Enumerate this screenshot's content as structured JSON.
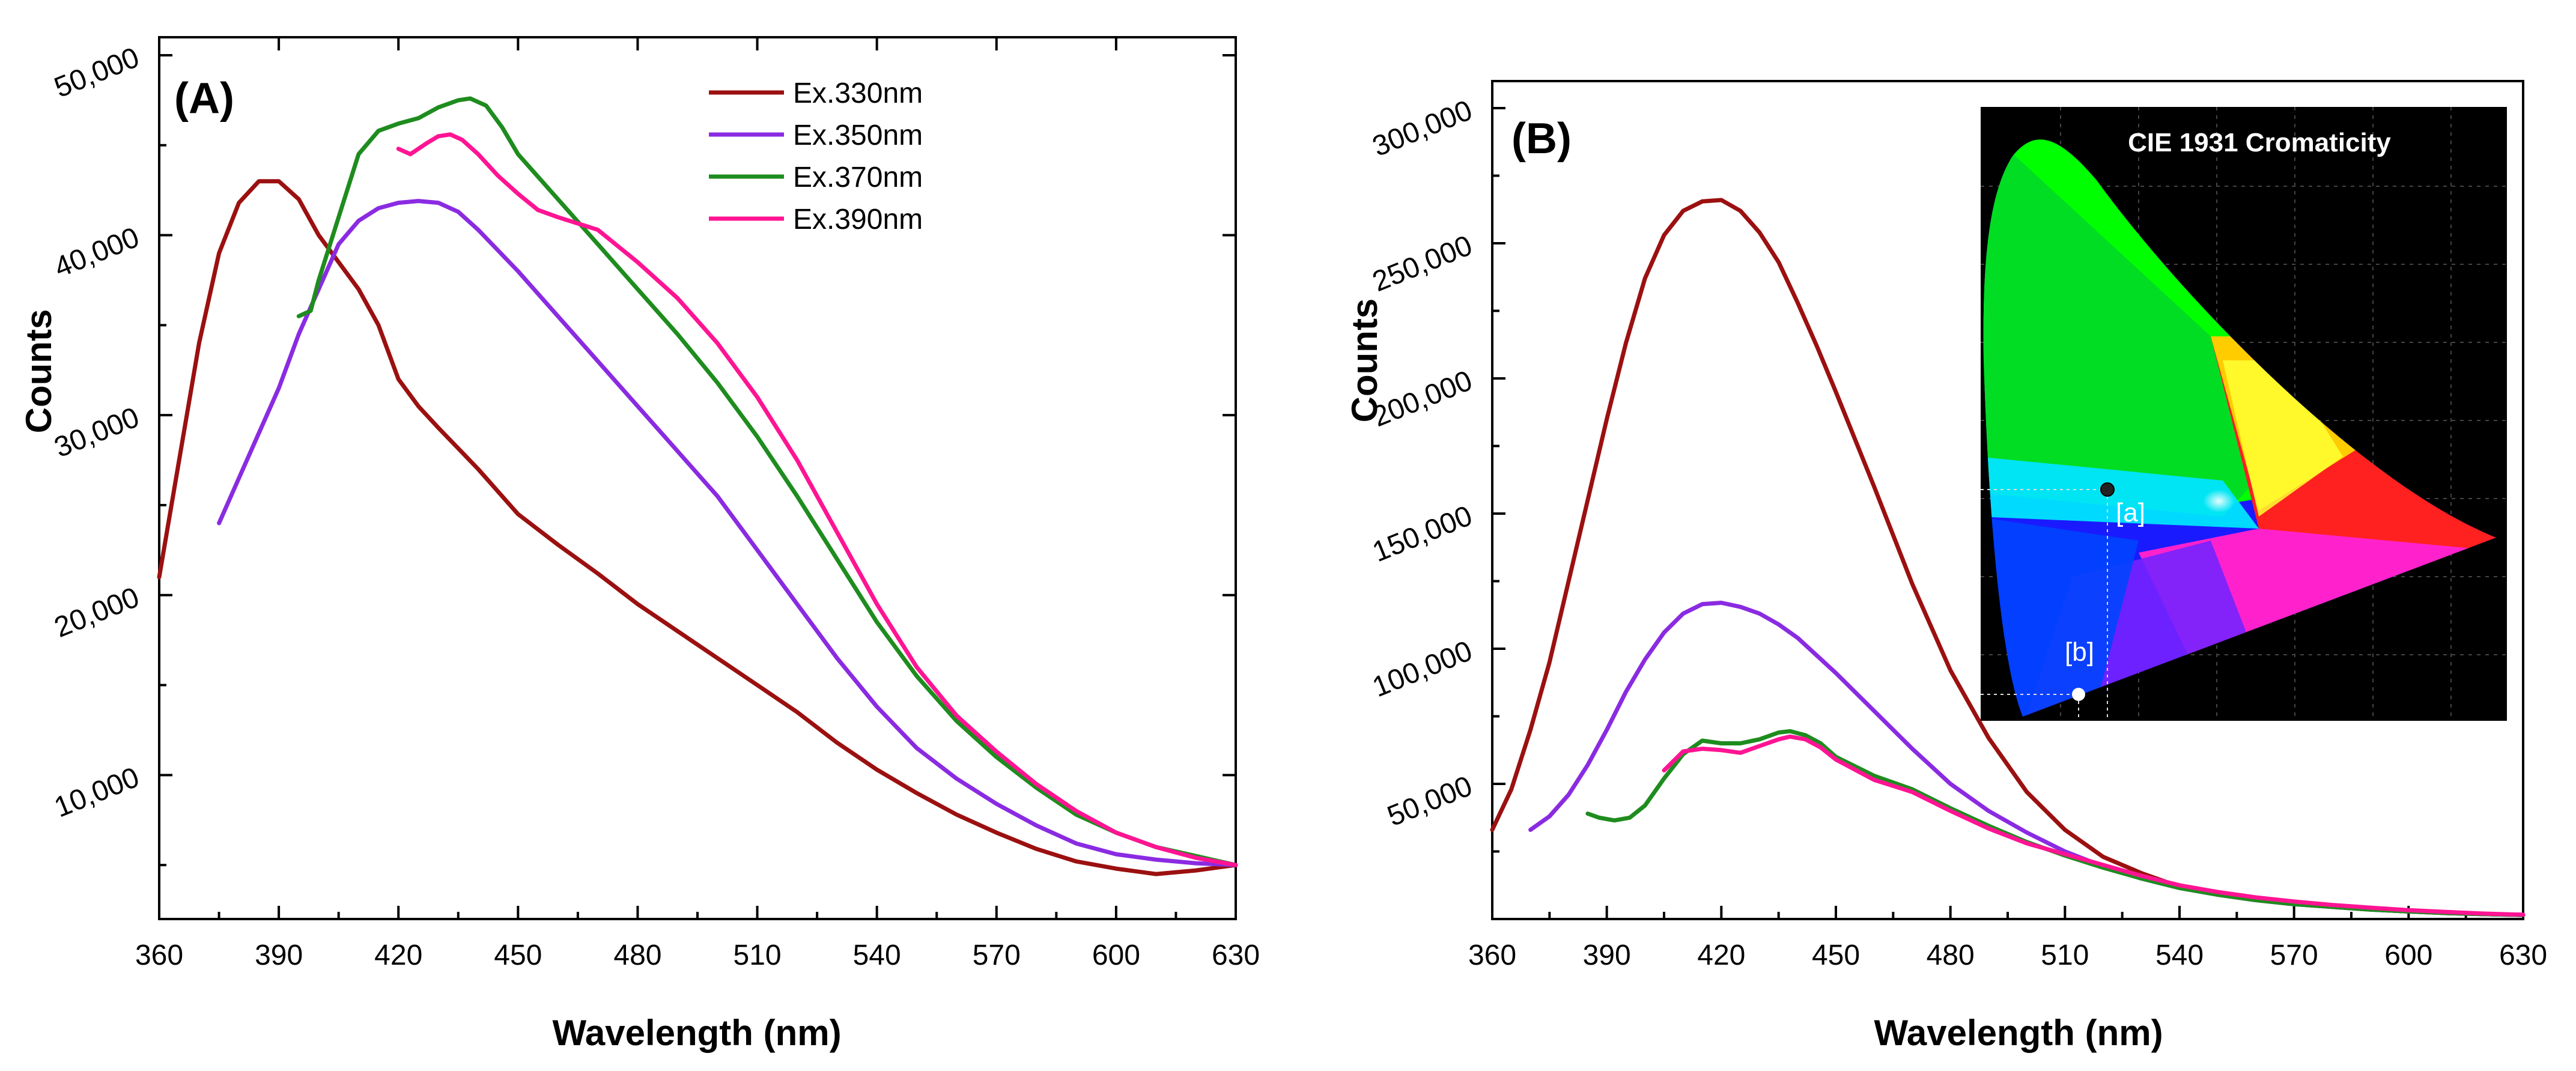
{
  "chart_data": [
    {
      "type": "line",
      "panel_label": "(A)",
      "xlabel": "Wavelength (nm)",
      "ylabel": "Counts",
      "xlim": [
        360,
        630
      ],
      "ylim": [
        2000,
        51000
      ],
      "xticks": [
        360,
        390,
        420,
        450,
        480,
        510,
        540,
        570,
        600,
        630
      ],
      "xtick_labels": [
        "360",
        "390",
        "420",
        "450",
        "480",
        "510",
        "540",
        "570",
        "600",
        "630"
      ],
      "yticks": [
        10000,
        20000,
        30000,
        40000,
        50000
      ],
      "ytick_labels": [
        "10,000",
        "20,000",
        "30,000",
        "40,000",
        "50,000"
      ],
      "legend_position": "top-center",
      "series": [
        {
          "name": "Ex.330nm",
          "color": "#9b1010",
          "x": [
            360,
            365,
            370,
            375,
            380,
            385,
            390,
            395,
            400,
            405,
            410,
            415,
            420,
            425,
            430,
            440,
            450,
            460,
            470,
            480,
            490,
            500,
            510,
            520,
            530,
            540,
            550,
            560,
            570,
            580,
            590,
            600,
            610,
            620,
            630
          ],
          "y": [
            21000,
            27500,
            34000,
            39000,
            41800,
            43000,
            43000,
            42000,
            40000,
            38500,
            37000,
            35000,
            32000,
            30500,
            29300,
            27000,
            24500,
            22800,
            21200,
            19500,
            18000,
            16500,
            15000,
            13500,
            11800,
            10300,
            9000,
            7800,
            6800,
            5900,
            5200,
            4800,
            4500,
            4700,
            5000
          ]
        },
        {
          "name": "Ex.350nm",
          "color": "#8a2be2",
          "x": [
            375,
            380,
            385,
            390,
            395,
            400,
            405,
            410,
            415,
            420,
            425,
            430,
            435,
            440,
            450,
            460,
            470,
            480,
            490,
            500,
            510,
            520,
            530,
            540,
            550,
            560,
            570,
            580,
            590,
            600,
            610,
            620,
            630
          ],
          "y": [
            24000,
            26500,
            29000,
            31500,
            34500,
            37000,
            39500,
            40800,
            41500,
            41800,
            41900,
            41800,
            41300,
            40300,
            38000,
            35500,
            33000,
            30500,
            28000,
            25500,
            22500,
            19500,
            16500,
            13800,
            11500,
            9800,
            8400,
            7200,
            6200,
            5600,
            5300,
            5100,
            5000
          ]
        },
        {
          "name": "Ex.370nm",
          "color": "#1e8c1e",
          "x": [
            395,
            398,
            400,
            405,
            410,
            415,
            420,
            425,
            430,
            435,
            438,
            442,
            446,
            450,
            460,
            470,
            480,
            490,
            500,
            510,
            520,
            530,
            540,
            550,
            560,
            570,
            580,
            590,
            600,
            610,
            620,
            630
          ],
          "y": [
            35500,
            35800,
            37500,
            41000,
            44500,
            45800,
            46200,
            46500,
            47100,
            47500,
            47600,
            47200,
            46000,
            44500,
            42000,
            39500,
            37000,
            34500,
            31800,
            28800,
            25500,
            22000,
            18500,
            15500,
            13000,
            11000,
            9300,
            7800,
            6800,
            6000,
            5500,
            5000
          ]
        },
        {
          "name": "Ex.390nm",
          "color": "#ff1493",
          "x": [
            420,
            423,
            427,
            430,
            433,
            436,
            440,
            445,
            450,
            455,
            460,
            470,
            480,
            490,
            500,
            510,
            520,
            530,
            540,
            550,
            560,
            570,
            580,
            590,
            600,
            610,
            620,
            630
          ],
          "y": [
            44800,
            44500,
            45100,
            45500,
            45600,
            45300,
            44500,
            43300,
            42300,
            41400,
            41000,
            40300,
            38500,
            36500,
            34000,
            31000,
            27500,
            23500,
            19500,
            16000,
            13300,
            11300,
            9500,
            8000,
            6800,
            6000,
            5400,
            5000
          ]
        }
      ]
    },
    {
      "type": "line",
      "panel_label": "(B)",
      "xlabel": "Wavelength (nm)",
      "ylabel": "Counts",
      "xlim": [
        360,
        630
      ],
      "ylim": [
        0,
        310000
      ],
      "xticks": [
        360,
        390,
        420,
        450,
        480,
        510,
        540,
        570,
        600,
        630
      ],
      "xtick_labels": [
        "360",
        "390",
        "420",
        "450",
        "480",
        "510",
        "540",
        "570",
        "600",
        "630"
      ],
      "yticks": [
        50000,
        100000,
        150000,
        200000,
        250000,
        300000
      ],
      "ytick_labels": [
        "50,000",
        "100,000",
        "150,000",
        "200,000",
        "250,000",
        "300,000"
      ],
      "series": [
        {
          "name": "Ex.330nm",
          "color": "#9b1010",
          "x": [
            360,
            365,
            370,
            375,
            380,
            385,
            390,
            395,
            400,
            405,
            410,
            415,
            420,
            425,
            430,
            435,
            440,
            445,
            450,
            460,
            470,
            480,
            490,
            500,
            510,
            520,
            530,
            540,
            550,
            560,
            570,
            580,
            590,
            600,
            610,
            620,
            630
          ],
          "y": [
            33000,
            48000,
            70000,
            95000,
            125000,
            155000,
            185000,
            213000,
            237000,
            253000,
            262000,
            265500,
            266000,
            262000,
            254000,
            243000,
            228000,
            212000,
            195000,
            160000,
            124000,
            92000,
            67000,
            47000,
            33000,
            23000,
            17000,
            12000,
            9000,
            7000,
            5500,
            4500,
            3500,
            2800,
            2200,
            1800,
            1500
          ]
        },
        {
          "name": "Ex.350nm",
          "color": "#8a2be2",
          "x": [
            370,
            375,
            380,
            385,
            390,
            395,
            400,
            405,
            410,
            415,
            420,
            425,
            430,
            435,
            440,
            450,
            460,
            470,
            480,
            490,
            500,
            510,
            520,
            530,
            540,
            550,
            560,
            570,
            580,
            590,
            600,
            610,
            620,
            630
          ],
          "y": [
            33000,
            38000,
            46000,
            57000,
            70000,
            84000,
            96000,
            106000,
            113000,
            116500,
            117000,
            115500,
            113000,
            109000,
            104000,
            91000,
            77000,
            63000,
            50000,
            40000,
            32000,
            25000,
            19500,
            15000,
            11500,
            9000,
            7000,
            5500,
            4500,
            3500,
            2800,
            2200,
            1800,
            1500
          ]
        },
        {
          "name": "Ex.370nm",
          "color": "#1e8c1e",
          "x": [
            385,
            388,
            392,
            396,
            400,
            405,
            410,
            415,
            420,
            425,
            430,
            435,
            438,
            442,
            446,
            450,
            460,
            470,
            480,
            490,
            500,
            510,
            520,
            530,
            540,
            550,
            560,
            570,
            580,
            590,
            600,
            610,
            620,
            630
          ],
          "y": [
            39000,
            37500,
            36500,
            37500,
            42000,
            52000,
            61000,
            66000,
            65000,
            65000,
            66500,
            69000,
            69500,
            68000,
            65000,
            60000,
            53000,
            48000,
            41000,
            34500,
            28500,
            23500,
            19000,
            15000,
            11500,
            9000,
            7000,
            5500,
            4500,
            3500,
            2800,
            2200,
            1800,
            1500
          ]
        },
        {
          "name": "Ex.390nm",
          "color": "#ff1493",
          "x": [
            405,
            410,
            415,
            420,
            425,
            430,
            435,
            438,
            442,
            446,
            450,
            460,
            470,
            480,
            490,
            500,
            510,
            520,
            530,
            540,
            550,
            560,
            570,
            580,
            590,
            600,
            610,
            620,
            630
          ],
          "y": [
            55000,
            62000,
            63000,
            62500,
            61500,
            64000,
            66500,
            67500,
            66500,
            63500,
            59000,
            51500,
            47000,
            40000,
            33500,
            28000,
            24000,
            20000,
            16000,
            12500,
            10000,
            8000,
            6500,
            5200,
            4200,
            3300,
            2600,
            2000,
            1600
          ]
        }
      ]
    }
  ],
  "inset": {
    "title": "CIE 1931 Cromaticity",
    "points": [
      {
        "label": "[a]",
        "cie_x": 0.1815,
        "cie_y": 0.2525,
        "color": "#222222"
      },
      {
        "label": "[b]",
        "cie_x": 0.1634,
        "cie_y": 0.0395,
        "color": "#ffffff"
      }
    ]
  }
}
